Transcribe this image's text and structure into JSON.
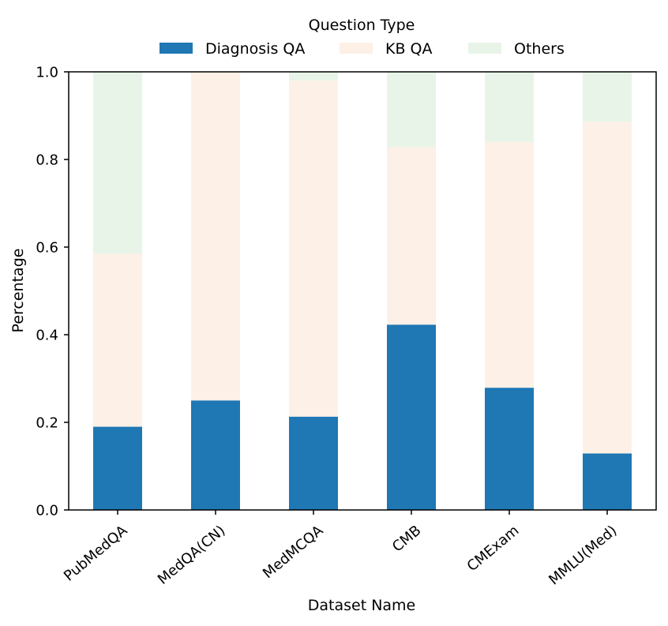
{
  "chart_data": {
    "type": "bar",
    "stacked": true,
    "title": "",
    "xlabel": "Dataset Name",
    "ylabel": "Percentage",
    "ylim": [
      0,
      1.0
    ],
    "yticks": [
      "0.0",
      "0.2",
      "0.4",
      "0.6",
      "0.8",
      "1.0"
    ],
    "grid": false,
    "legend": {
      "title": "Question Type",
      "placement": "top-center"
    },
    "categories": [
      "PubMedQA",
      "MedQA(CN)",
      "MedMCQA",
      "CMB",
      "CMExam",
      "MMLU(Med)"
    ],
    "series": [
      {
        "name": "Diagnosis QA",
        "color": "#1f77b4",
        "values": [
          0.19,
          0.25,
          0.213,
          0.423,
          0.279,
          0.129
        ]
      },
      {
        "name": "KB QA",
        "color": "#fdf0e6",
        "values": [
          0.395,
          0.75,
          0.767,
          0.405,
          0.561,
          0.757
        ]
      },
      {
        "name": "Others",
        "color": "#e8f4e8",
        "values": [
          0.415,
          0.0,
          0.02,
          0.172,
          0.16,
          0.114
        ]
      }
    ]
  }
}
